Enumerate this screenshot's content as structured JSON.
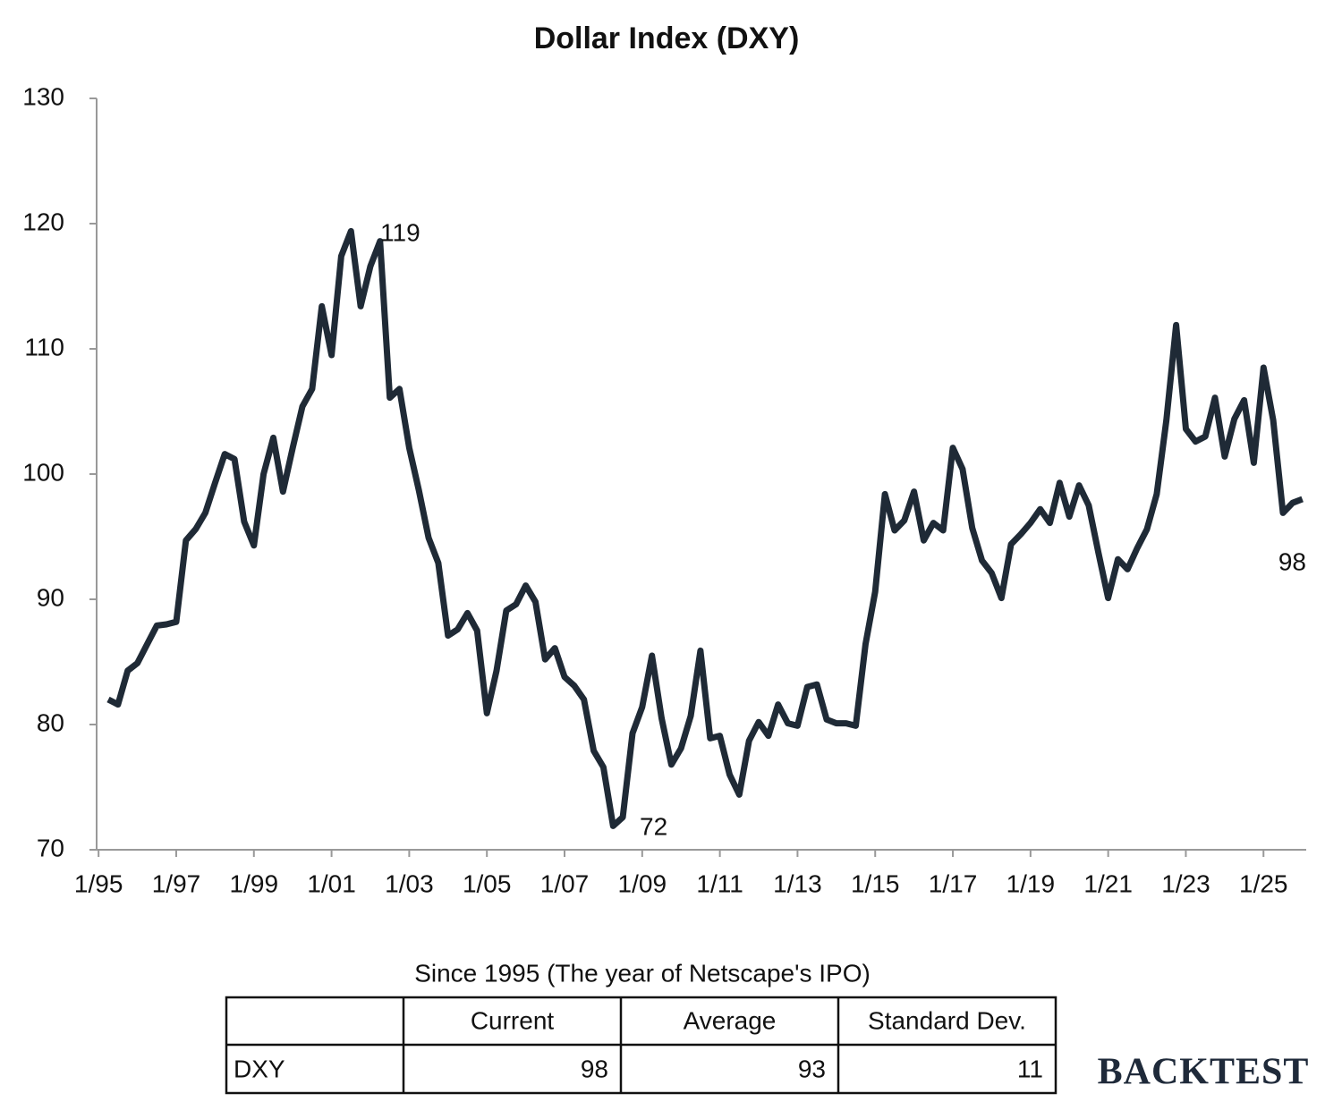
{
  "chart_data": {
    "type": "line",
    "title": "Dollar Index (DXY)",
    "x": [
      1995.25,
      1995.5,
      1995.75,
      1996,
      1996.25,
      1996.5,
      1996.75,
      1997,
      1997.25,
      1997.5,
      1997.75,
      1998,
      1998.25,
      1998.5,
      1998.75,
      1999,
      1999.25,
      1999.5,
      1999.75,
      2000,
      2000.25,
      2000.5,
      2000.75,
      2001,
      2001.25,
      2001.5,
      2001.75,
      2002,
      2002.25,
      2002.5,
      2002.75,
      2003,
      2003.25,
      2003.5,
      2003.75,
      2004,
      2004.25,
      2004.5,
      2004.75,
      2005,
      2005.25,
      2005.5,
      2005.75,
      2006,
      2006.25,
      2006.5,
      2006.75,
      2007,
      2007.25,
      2007.5,
      2007.75,
      2008,
      2008.25,
      2008.5,
      2008.75,
      2009,
      2009.25,
      2009.5,
      2009.75,
      2010,
      2010.25,
      2010.5,
      2010.75,
      2011,
      2011.25,
      2011.5,
      2011.75,
      2012,
      2012.25,
      2012.5,
      2012.75,
      2013,
      2013.25,
      2013.5,
      2013.75,
      2014,
      2014.25,
      2014.5,
      2014.75,
      2015,
      2015.25,
      2015.5,
      2015.75,
      2016,
      2016.25,
      2016.5,
      2016.75,
      2017,
      2017.25,
      2017.5,
      2017.75,
      2018,
      2018.25,
      2018.5,
      2018.75,
      2019,
      2019.25,
      2019.5,
      2019.75,
      2020,
      2020.25,
      2020.5,
      2020.75,
      2021,
      2021.25,
      2021.5,
      2021.75,
      2022,
      2022.25,
      2022.5,
      2022.75,
      2023,
      2023.25,
      2023.5,
      2023.75,
      2024,
      2024.25,
      2024.5,
      2024.75,
      2025,
      2025.25,
      2025.5,
      2025.75,
      2026
    ],
    "series": [
      {
        "name": "DXY",
        "color": "#1f2a36",
        "values": [
          82.0,
          81.6,
          84.3,
          84.9,
          86.4,
          87.9,
          88.0,
          88.2,
          94.7,
          95.6,
          96.9,
          99.3,
          101.6,
          101.2,
          96.2,
          94.3,
          100.0,
          102.9,
          98.6,
          102.1,
          105.4,
          106.8,
          113.4,
          109.5,
          117.4,
          119.4,
          113.4,
          116.6,
          118.6,
          106.1,
          106.8,
          102.1,
          98.7,
          94.9,
          92.9,
          87.1,
          87.6,
          88.9,
          87.5,
          80.9,
          84.3,
          89.1,
          89.6,
          91.1,
          89.8,
          85.2,
          86.1,
          83.8,
          83.1,
          82.0,
          77.9,
          76.6,
          71.9,
          72.6,
          79.3,
          81.4,
          85.5,
          80.5,
          76.8,
          78.1,
          80.7,
          85.9,
          78.9,
          79.1,
          76.0,
          74.4,
          78.7,
          80.2,
          79.1,
          81.6,
          80.1,
          79.9,
          83.0,
          83.2,
          80.4,
          80.1,
          80.1,
          79.9,
          86.4,
          90.6,
          98.4,
          95.5,
          96.3,
          98.6,
          94.7,
          96.1,
          95.5,
          102.1,
          100.4,
          95.7,
          93.1,
          92.1,
          90.1,
          94.4,
          95.2,
          96.1,
          97.2,
          96.1,
          99.3,
          96.6,
          99.1,
          97.5,
          93.7,
          90.1,
          93.2,
          92.4,
          94.1,
          95.6,
          98.4,
          104.3,
          111.9,
          103.6,
          102.6,
          103.0,
          106.1,
          101.4,
          104.4,
          105.9,
          100.9,
          108.5,
          104.3,
          96.9,
          97.7,
          98.0
        ]
      }
    ],
    "annotations": [
      "119",
      "72",
      "98"
    ],
    "xlim": [
      1994.95,
      2026.1
    ],
    "xticks": [
      {
        "value": 1995,
        "label": "1/95"
      },
      {
        "value": 1997,
        "label": "1/97"
      },
      {
        "value": 1999,
        "label": "1/99"
      },
      {
        "value": 2001,
        "label": "1/01"
      },
      {
        "value": 2003,
        "label": "1/03"
      },
      {
        "value": 2005,
        "label": "1/05"
      },
      {
        "value": 2007,
        "label": "1/07"
      },
      {
        "value": 2009,
        "label": "1/09"
      },
      {
        "value": 2011,
        "label": "1/11"
      },
      {
        "value": 2013,
        "label": "1/13"
      },
      {
        "value": 2015,
        "label": "1/15"
      },
      {
        "value": 2017,
        "label": "1/17"
      },
      {
        "value": 2019,
        "label": "1/19"
      },
      {
        "value": 2021,
        "label": "1/21"
      },
      {
        "value": 2023,
        "label": "1/23"
      },
      {
        "value": 2025,
        "label": "1/25"
      }
    ],
    "ylim": [
      70,
      130
    ],
    "yticks": [
      70,
      80,
      90,
      100,
      110,
      120,
      130
    ],
    "grid": false
  },
  "table": {
    "title": "Since 1995 (The year of Netscape's IPO)",
    "headers": [
      "Current",
      "Average",
      "Standard Dev."
    ],
    "rows": [
      [
        "DXY",
        98,
        93,
        11
      ]
    ]
  },
  "watermark": "BACKTEST"
}
